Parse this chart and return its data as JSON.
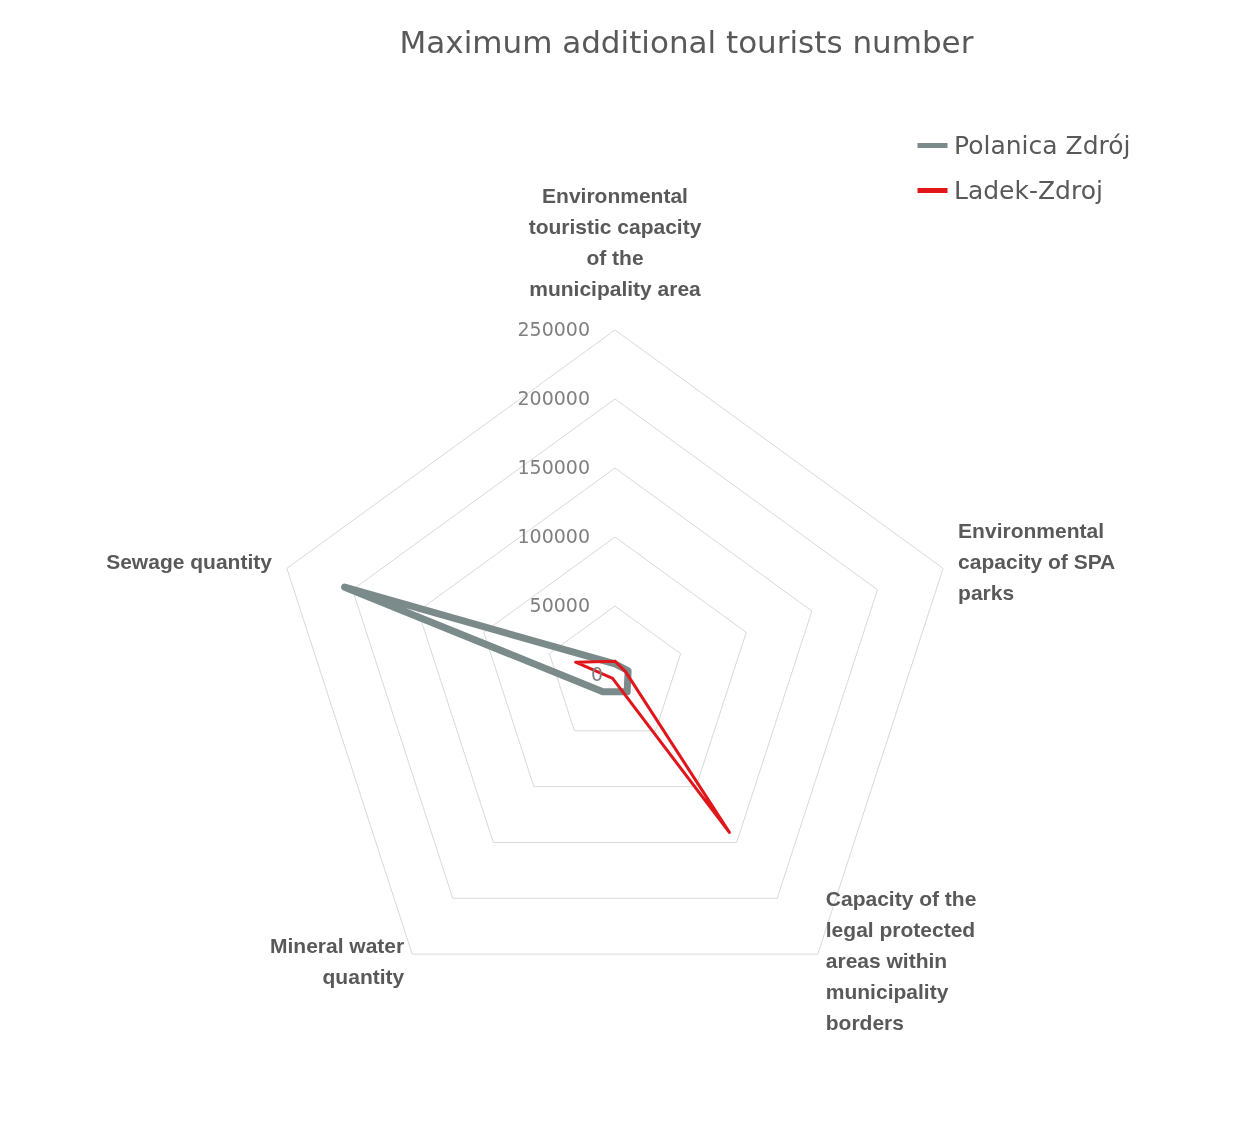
{
  "chart_data": {
    "type": "radar",
    "title": "Maximum additional tourists number",
    "categories": [
      "Environmental touristic capacity of the municipality area",
      "Environmental capacity of SPA parks",
      "Capacity of the legal protected areas within municipality borders",
      "Mineral water quantity",
      "Sewage quantity"
    ],
    "series": [
      {
        "name": "Polanica Zdrój",
        "color": "#7b8a8b",
        "values": [
          8000,
          10000,
          15000,
          15000,
          206000
        ]
      },
      {
        "name": "Ladek-Zdroj",
        "color": "#e0161b",
        "values": [
          10000,
          8000,
          141000,
          3000,
          30000
        ]
      }
    ],
    "ylim": [
      0,
      250000
    ],
    "yticks": [
      0,
      50000,
      100000,
      150000,
      200000,
      250000
    ],
    "grid": true,
    "legend": "top right",
    "marker": "none",
    "line_style": "solid"
  }
}
